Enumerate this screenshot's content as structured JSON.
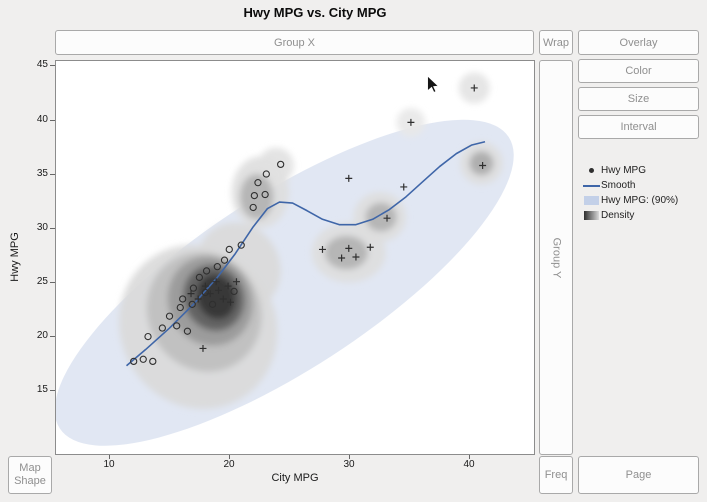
{
  "header": {
    "title": "Hwy MPG vs. City MPG"
  },
  "zones": {
    "group_x": "Group X",
    "wrap": "Wrap",
    "group_y": "Group Y",
    "freq": "Freq",
    "map_shape": [
      "Map",
      "Shape"
    ]
  },
  "buttons": {
    "overlay": "Overlay",
    "color": "Color",
    "size": "Size",
    "interval": "Interval",
    "page": "Page"
  },
  "legend": {
    "items": [
      "Hwy MPG",
      "Smooth",
      "Hwy MPG: (90%)",
      "Density"
    ]
  },
  "axes": {
    "x_label": "City MPG",
    "y_label": "Hwy MPG"
  },
  "colors": {
    "smooth": "#3f66a8",
    "interval": "#c3d0e8",
    "marker": "#2f2f2f",
    "density_dark": "#2e2e2e",
    "density_light": "#d9d9d9",
    "zone_text": "#8f8f8f"
  },
  "chart_data": {
    "type": "scatter",
    "title": "Hwy MPG vs. City MPG",
    "xlabel": "City MPG",
    "ylabel": "Hwy MPG",
    "xlim": [
      5.5,
      45.5
    ],
    "ylim": [
      9,
      45.5
    ],
    "xticks": [
      10,
      20,
      30,
      40
    ],
    "yticks": [
      15,
      20,
      25,
      30,
      35,
      40,
      45
    ],
    "grid": false,
    "legend_position": "right",
    "legend_entries": [
      "Hwy MPG",
      "Smooth",
      "Hwy MPG: (90%)",
      "Density"
    ],
    "points_circle": [
      [
        12,
        17.6
      ],
      [
        12.8,
        17.8
      ],
      [
        13.6,
        17.6
      ],
      [
        13.2,
        19.9
      ],
      [
        14.4,
        20.7
      ],
      [
        15,
        21.8
      ],
      [
        15.6,
        20.9
      ],
      [
        15.9,
        22.6
      ],
      [
        16.1,
        23.4
      ],
      [
        16.5,
        20.4
      ],
      [
        16.9,
        22.9
      ],
      [
        17,
        24.4
      ],
      [
        17.5,
        25.4
      ],
      [
        18,
        24
      ],
      [
        18.1,
        26
      ],
      [
        18.6,
        22.9
      ],
      [
        19,
        26.4
      ],
      [
        19.6,
        27
      ],
      [
        20,
        28
      ],
      [
        20.4,
        24.1
      ],
      [
        21,
        28.4
      ],
      [
        22,
        31.9
      ],
      [
        22.1,
        33
      ],
      [
        22.4,
        34.2
      ],
      [
        23,
        33.1
      ],
      [
        23.1,
        35
      ],
      [
        24.3,
        35.9
      ]
    ],
    "points_plus": [
      [
        16.8,
        23.9
      ],
      [
        17.4,
        23.4
      ],
      [
        18,
        24.6
      ],
      [
        18.4,
        23.9
      ],
      [
        18.9,
        25
      ],
      [
        19.1,
        24.2
      ],
      [
        19.5,
        23.4
      ],
      [
        19.9,
        24.6
      ],
      [
        20.1,
        23.1
      ],
      [
        20.6,
        25
      ],
      [
        17.8,
        18.8
      ],
      [
        27.8,
        28
      ],
      [
        29.4,
        27.2
      ],
      [
        30,
        28.1
      ],
      [
        30.6,
        27.3
      ],
      [
        31.8,
        28.2
      ],
      [
        30,
        34.6
      ],
      [
        33.2,
        30.9
      ],
      [
        34.6,
        33.8
      ],
      [
        35.2,
        39.8
      ],
      [
        40.5,
        43
      ],
      [
        41.2,
        35.8
      ]
    ],
    "smooth": [
      [
        11.4,
        17.2
      ],
      [
        13,
        18.7
      ],
      [
        15,
        20.7
      ],
      [
        17,
        22.9
      ],
      [
        19,
        25.4
      ],
      [
        20.5,
        27.6
      ],
      [
        22,
        30.1
      ],
      [
        23.2,
        31.8
      ],
      [
        24.2,
        32.4
      ],
      [
        25.3,
        32.3
      ],
      [
        26.5,
        31.6
      ],
      [
        27.8,
        30.8
      ],
      [
        29.2,
        30.3
      ],
      [
        30.6,
        30.3
      ],
      [
        32,
        30.8
      ],
      [
        33.4,
        31.7
      ],
      [
        34.8,
        32.9
      ],
      [
        36.2,
        34.3
      ],
      [
        37.6,
        35.7
      ],
      [
        39,
        36.9
      ],
      [
        40.3,
        37.7
      ],
      [
        41.4,
        38
      ]
    ],
    "interval_ellipse": {
      "cx": 24.6,
      "cy": 24.9,
      "rx": 22.4,
      "ry": 7.3,
      "angle": -33,
      "label": "Hwy MPG: (90%)"
    },
    "density_blobs": [
      {
        "cx": 17.4,
        "cy": 20.8,
        "rx": 6.5,
        "ry": 7.0,
        "rot": -30,
        "fill": "#dadada"
      },
      {
        "cx": 20.8,
        "cy": 26.4,
        "rx": 3.4,
        "ry": 3.8,
        "rot": -30,
        "fill": "#dadada"
      },
      {
        "cx": 17.9,
        "cy": 22.2,
        "rx": 4.7,
        "ry": 5.1,
        "rot": -30,
        "fill": "#bfbfbf"
      },
      {
        "cx": 18.4,
        "cy": 23.2,
        "rx": 3.5,
        "ry": 3.8,
        "rot": -26,
        "fill": "#999999"
      },
      {
        "cx": 18.7,
        "cy": 23.5,
        "rx": 2.5,
        "ry": 2.8,
        "rot": -22,
        "fill": "#5f5f5f"
      },
      {
        "cx": 18.9,
        "cy": 23.6,
        "rx": 1.6,
        "ry": 1.9,
        "rot": -18,
        "fill": "#343434"
      },
      {
        "cx": 22.6,
        "cy": 33.3,
        "rx": 2.4,
        "ry": 3.0,
        "rot": 0,
        "fill": "#dedede"
      },
      {
        "cx": 23.9,
        "cy": 35.8,
        "rx": 1.5,
        "ry": 1.5,
        "rot": 0,
        "fill": "#e2e2e2"
      },
      {
        "cx": 22.3,
        "cy": 32.9,
        "rx": 1.4,
        "ry": 1.9,
        "rot": 0,
        "fill": "#b3b3b3"
      },
      {
        "cx": 30,
        "cy": 27.7,
        "rx": 3.1,
        "ry": 2.5,
        "rot": 0,
        "fill": "#dedede"
      },
      {
        "cx": 29.8,
        "cy": 27.7,
        "rx": 1.8,
        "ry": 1.4,
        "rot": 0,
        "fill": "#b3b3b3"
      },
      {
        "cx": 32.6,
        "cy": 31,
        "rx": 2.2,
        "ry": 2.1,
        "rot": 0,
        "fill": "#dedede"
      },
      {
        "cx": 32.7,
        "cy": 31,
        "rx": 1.3,
        "ry": 1.2,
        "rot": 0,
        "fill": "#b3b3b3"
      },
      {
        "cx": 41.1,
        "cy": 36,
        "rx": 1.8,
        "ry": 1.8,
        "rot": 0,
        "fill": "#dedede"
      },
      {
        "cx": 41.1,
        "cy": 36,
        "rx": 1.0,
        "ry": 1.0,
        "rot": 0,
        "fill": "#ababab"
      },
      {
        "cx": 40.5,
        "cy": 43,
        "rx": 1.3,
        "ry": 1.3,
        "rot": 0,
        "fill": "#e4e4e4"
      },
      {
        "cx": 35.2,
        "cy": 39.8,
        "rx": 1.2,
        "ry": 1.2,
        "rot": 0,
        "fill": "#e8e8e8"
      }
    ],
    "cursor": {
      "x": 36.6,
      "y": 44.1
    }
  }
}
